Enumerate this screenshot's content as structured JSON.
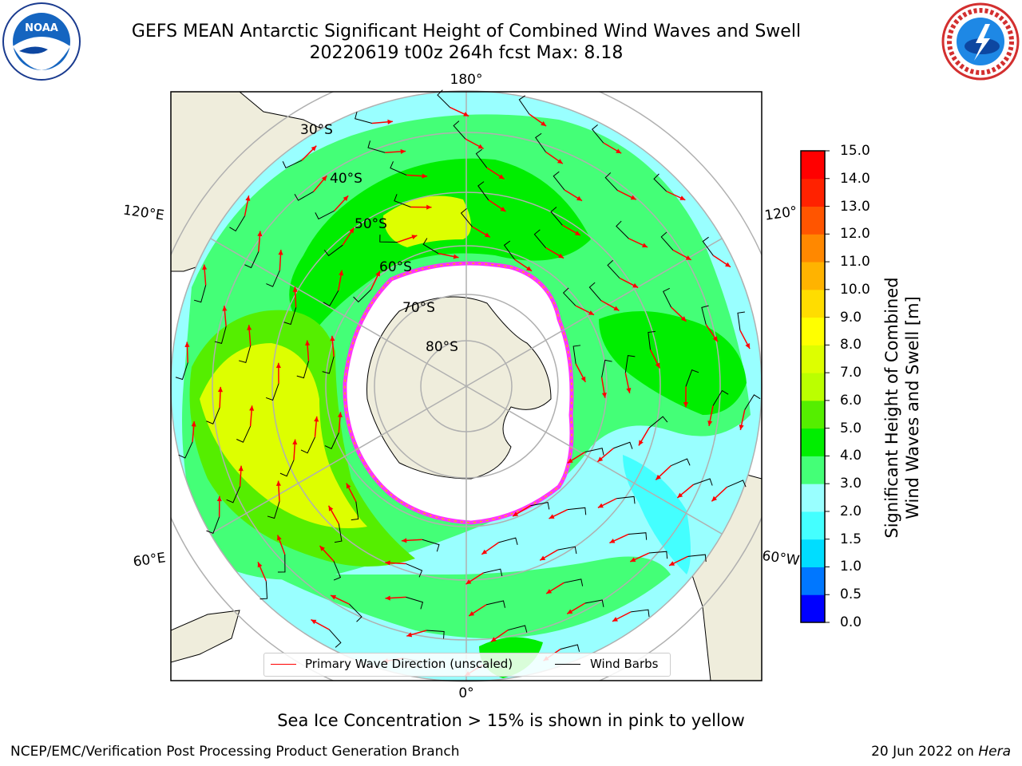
{
  "header": {
    "title_line1": "GEFS MEAN Antarctic Significant Height of Combined Wind Waves and Swell",
    "title_line2": "20220619 t00z 264h fcst   Max: 8.18"
  },
  "logos": {
    "left": "noaa-logo",
    "right": "nws-logo"
  },
  "map": {
    "projection": "south-polar-stereographic",
    "longitude_labels": {
      "top": "180°",
      "bottom": "0°",
      "upper_left": "120°E",
      "lower_left": "60°E",
      "upper_right": "120°",
      "lower_right": "60°W"
    },
    "latitude_labels": [
      "30°S",
      "40°S",
      "50°S",
      "60°S",
      "70°S",
      "80°S"
    ],
    "colors": {
      "land": "#efeddc",
      "ice_edge": "#ff33ff",
      "arrow": "#ff0000",
      "barb": "#000000",
      "grid": "#b0b0b0"
    }
  },
  "colorbar": {
    "label_line1": "Significant Height of Combined",
    "label_line2": "Wind Waves and Swell [m]",
    "ticks": [
      "0.0",
      "0.5",
      "1.0",
      "1.5",
      "2.0",
      "3.0",
      "4.0",
      "5.0",
      "6.0",
      "7.0",
      "8.0",
      "9.0",
      "10.0",
      "11.0",
      "12.0",
      "13.0",
      "14.0",
      "15.0"
    ],
    "colors": [
      "#0000ff",
      "#0077ff",
      "#00ddff",
      "#44ffff",
      "#99ffff",
      "#44ff77",
      "#00ee00",
      "#55ee00",
      "#bbff00",
      "#ddff00",
      "#ffff00",
      "#ffdd00",
      "#ffb300",
      "#ff8800",
      "#ff5500",
      "#ff2200",
      "#ff0000"
    ]
  },
  "legend": {
    "arrow_label": "Primary Wave Direction (unscaled)",
    "barb_label": "Wind Barbs"
  },
  "footer": {
    "note": "Sea Ice Concentration > 15% is shown in pink to yellow",
    "left": "NCEP/EMC/Verification Post Processing Product Generation Branch",
    "right_date": "20 Jun 2022 on",
    "right_machine": "Hera"
  }
}
